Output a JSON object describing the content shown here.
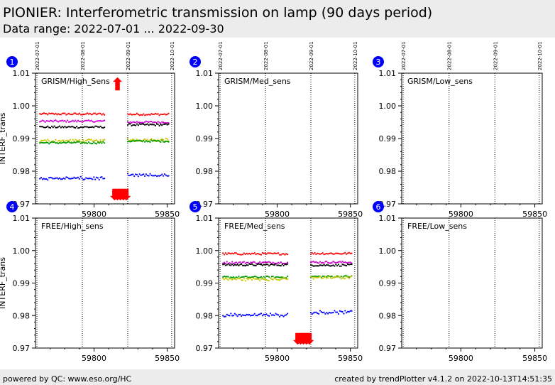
{
  "header": {
    "title": "PIONIER: Interferometric transmission on lamp (90 days period)",
    "subtitle": "Data range: 2022-07-01 ... 2022-09-30"
  },
  "footer": {
    "left": "powered by QC: www.eso.org/HC",
    "right": "created by trendPlotter v4.1.2 on 2022-10-13T14:51:35"
  },
  "colors": {
    "red": "#ff0000",
    "magenta": "#cc00cc",
    "black": "#000000",
    "yellow": "#c8c800",
    "green": "#009900",
    "blue": "#0000ff",
    "marker": "#0000ff",
    "arrow": "#ff0000"
  },
  "chart_data": [
    {
      "type": "scatter",
      "panel": "1",
      "label": "GRISM/High_Sens",
      "ylabel": "INTERF_trans",
      "xlim": [
        59760,
        59855
      ],
      "ylim": [
        0.97,
        1.01
      ],
      "xticks": [
        59800,
        59850
      ],
      "yticks": [
        "0.97",
        "0.98",
        "0.99",
        "1.00",
        "1.01"
      ],
      "date_lines": [
        {
          "mjd": 59761,
          "label": "2022-07-01"
        },
        {
          "mjd": 59792,
          "label": "2022-08-01"
        },
        {
          "mjd": 59823,
          "label": "2022-09-01"
        },
        {
          "mjd": 59853,
          "label": "2022-10-01"
        }
      ],
      "series": [
        {
          "color": "red",
          "segments": [
            {
              "x": [
                59763,
                59808
              ],
              "y": 0.9975
            },
            {
              "x": [
                59823,
                59851
              ],
              "y": 0.9974
            }
          ]
        },
        {
          "color": "magenta",
          "segments": [
            {
              "x": [
                59763,
                59808
              ],
              "y": 0.9953
            },
            {
              "x": [
                59823,
                59851
              ],
              "y": 0.995
            }
          ]
        },
        {
          "color": "black",
          "segments": [
            {
              "x": [
                59763,
                59808
              ],
              "y": 0.9935
            },
            {
              "x": [
                59823,
                59851
              ],
              "y": 0.9942
            }
          ]
        },
        {
          "color": "yellow",
          "segments": [
            {
              "x": [
                59763,
                59808
              ],
              "y": 0.9893
            },
            {
              "x": [
                59823,
                59851
              ],
              "y": 0.9896
            }
          ]
        },
        {
          "color": "green",
          "segments": [
            {
              "x": [
                59763,
                59808
              ],
              "y": 0.9887
            },
            {
              "x": [
                59823,
                59851
              ],
              "y": 0.9892
            }
          ]
        },
        {
          "color": "blue",
          "segments": [
            {
              "x": [
                59763,
                59808
              ],
              "y": 0.9778
            },
            {
              "x": [
                59823,
                59851
              ],
              "y": 0.9787
            }
          ]
        }
      ],
      "up_arrows": [
        59816
      ],
      "down_arrows": [
        59814,
        59816,
        59818,
        59820,
        59822
      ]
    },
    {
      "type": "scatter",
      "panel": "2",
      "label": "GRISM/Med_sens",
      "ylabel": "",
      "xlim": [
        59760,
        59855
      ],
      "ylim": [
        0.97,
        1.01
      ],
      "xticks": [
        59800,
        59850
      ],
      "yticks": [
        "0.97",
        "0.98",
        "0.99",
        "1.00",
        "1.01"
      ],
      "date_lines": [
        {
          "mjd": 59761,
          "label": "2022-07-01"
        },
        {
          "mjd": 59792,
          "label": "2022-08-01"
        },
        {
          "mjd": 59823,
          "label": "2022-09-01"
        },
        {
          "mjd": 59853,
          "label": "2022-10-01"
        }
      ],
      "series": [],
      "up_arrows": [],
      "down_arrows": []
    },
    {
      "type": "scatter",
      "panel": "3",
      "label": "GRISM/Low_sens",
      "ylabel": "",
      "xlim": [
        59760,
        59855
      ],
      "ylim": [
        0.97,
        1.01
      ],
      "xticks": [
        59800,
        59850
      ],
      "yticks": [
        "0.97",
        "0.98",
        "0.99",
        "1.00",
        "1.01"
      ],
      "date_lines": [
        {
          "mjd": 59761,
          "label": "2022-07-01"
        },
        {
          "mjd": 59792,
          "label": "2022-08-01"
        },
        {
          "mjd": 59823,
          "label": "2022-09-01"
        },
        {
          "mjd": 59853,
          "label": "2022-10-01"
        }
      ],
      "series": [],
      "up_arrows": [],
      "down_arrows": []
    },
    {
      "type": "scatter",
      "panel": "4",
      "label": "FREE/High_sens",
      "ylabel": "INTERF_trans",
      "xlim": [
        59760,
        59855
      ],
      "ylim": [
        0.97,
        1.01
      ],
      "xticks": [
        59800,
        59850
      ],
      "yticks": [
        "0.97",
        "0.98",
        "0.99",
        "1.00",
        "1.01"
      ],
      "date_lines": [
        {
          "mjd": 59761,
          "label": ""
        },
        {
          "mjd": 59792,
          "label": ""
        },
        {
          "mjd": 59823,
          "label": ""
        },
        {
          "mjd": 59853,
          "label": ""
        }
      ],
      "series": [],
      "up_arrows": [],
      "down_arrows": []
    },
    {
      "type": "scatter",
      "panel": "5",
      "label": "FREE/Med_sens",
      "ylabel": "",
      "xlim": [
        59760,
        59855
      ],
      "ylim": [
        0.97,
        1.01
      ],
      "xticks": [
        59800,
        59850
      ],
      "yticks": [
        "0.97",
        "0.98",
        "0.99",
        "1.00",
        "1.01"
      ],
      "date_lines": [
        {
          "mjd": 59761,
          "label": ""
        },
        {
          "mjd": 59792,
          "label": ""
        },
        {
          "mjd": 59823,
          "label": ""
        },
        {
          "mjd": 59853,
          "label": ""
        }
      ],
      "series": [
        {
          "color": "red",
          "segments": [
            {
              "x": [
                59763,
                59808
              ],
              "y": 0.999
            },
            {
              "x": [
                59823,
                59851
              ],
              "y": 0.9991
            }
          ]
        },
        {
          "color": "magenta",
          "segments": [
            {
              "x": [
                59763,
                59808
              ],
              "y": 0.9963
            },
            {
              "x": [
                59823,
                59851
              ],
              "y": 0.9964
            }
          ]
        },
        {
          "color": "black",
          "segments": [
            {
              "x": [
                59763,
                59808
              ],
              "y": 0.9956
            },
            {
              "x": [
                59823,
                59851
              ],
              "y": 0.9955
            }
          ]
        },
        {
          "color": "green",
          "segments": [
            {
              "x": [
                59763,
                59808
              ],
              "y": 0.9918
            },
            {
              "x": [
                59823,
                59851
              ],
              "y": 0.992
            }
          ]
        },
        {
          "color": "yellow",
          "segments": [
            {
              "x": [
                59763,
                59808
              ],
              "y": 0.9912
            },
            {
              "x": [
                59823,
                59851
              ],
              "y": 0.9917
            }
          ]
        },
        {
          "color": "blue",
          "segments": [
            {
              "x": [
                59763,
                59808
              ],
              "y": 0.9802
            },
            {
              "x": [
                59823,
                59851
              ],
              "y": 0.981
            }
          ]
        }
      ],
      "up_arrows": [],
      "down_arrows": [
        59814,
        59816,
        59818,
        59820,
        59822
      ]
    },
    {
      "type": "scatter",
      "panel": "6",
      "label": "FREE/Low_sens",
      "ylabel": "",
      "xlim": [
        59760,
        59855
      ],
      "ylim": [
        0.97,
        1.01
      ],
      "xticks": [
        59800,
        59850
      ],
      "yticks": [
        "0.97",
        "0.98",
        "0.99",
        "1.00",
        "1.01"
      ],
      "date_lines": [
        {
          "mjd": 59761,
          "label": ""
        },
        {
          "mjd": 59792,
          "label": ""
        },
        {
          "mjd": 59823,
          "label": ""
        },
        {
          "mjd": 59853,
          "label": ""
        }
      ],
      "series": [],
      "up_arrows": [],
      "down_arrows": []
    }
  ]
}
